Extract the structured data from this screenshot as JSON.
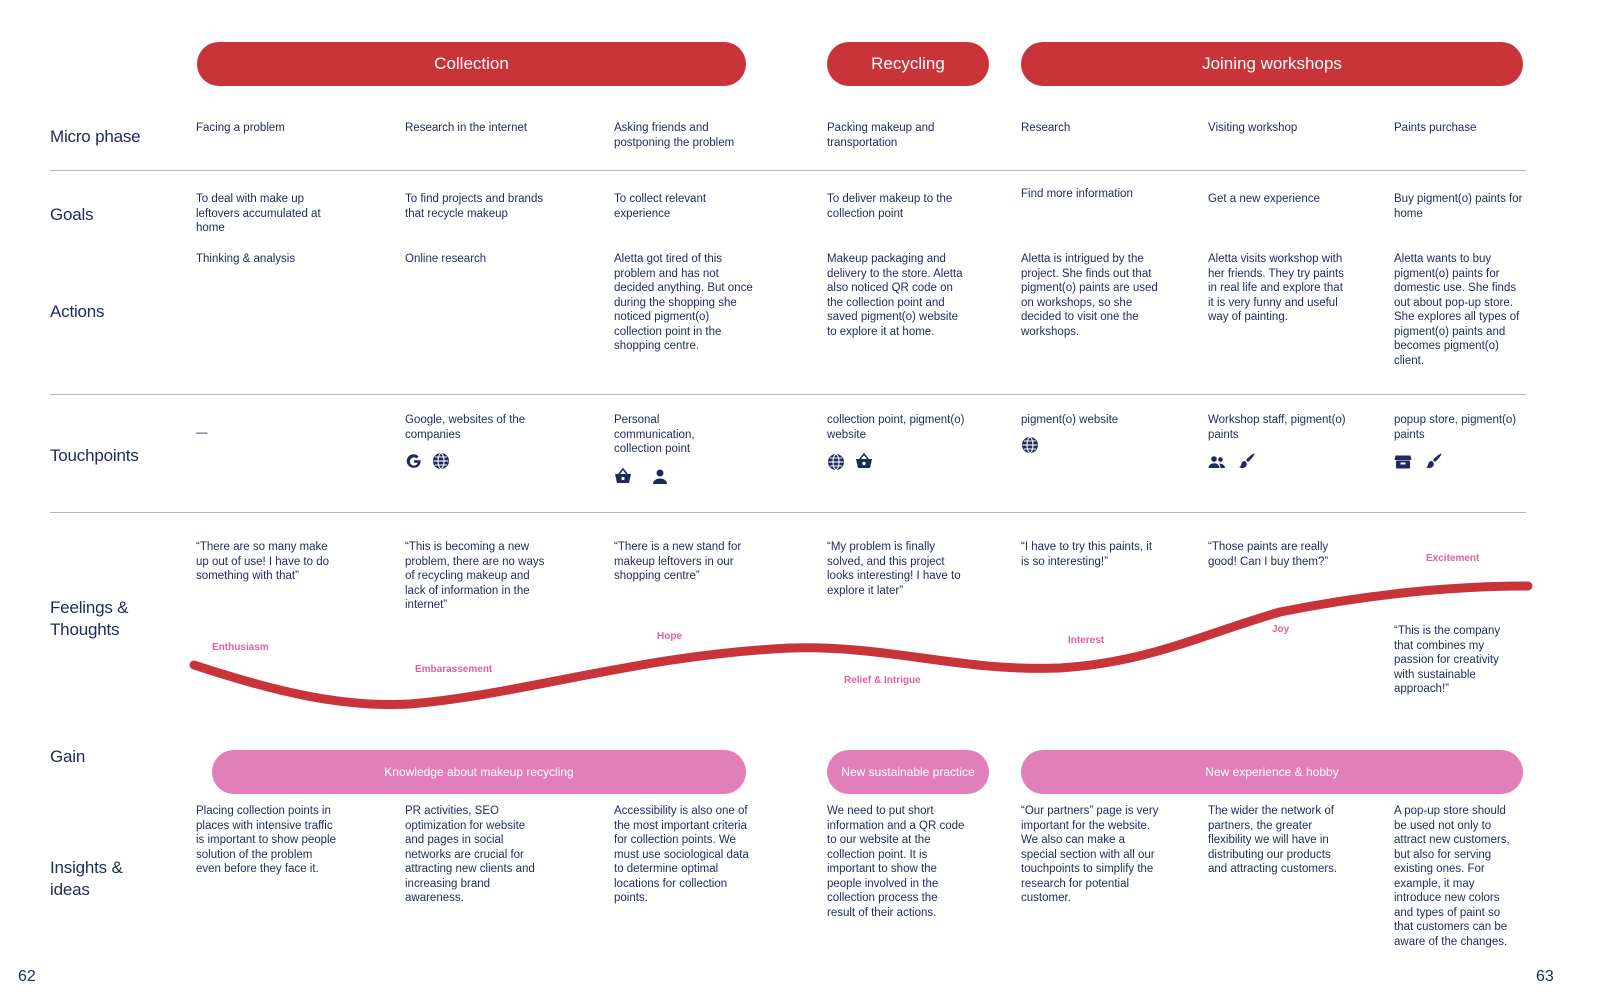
{
  "phases": {
    "collection": "Collection",
    "recycling": "Recycling",
    "workshops": "Joining workshops"
  },
  "rows": {
    "micro_phase": "Micro phase",
    "goals": "Goals",
    "actions": "Actions",
    "touchpoints": "Touchpoints",
    "feelings": "Feelings & Thoughts",
    "gain": "Gain",
    "insights": "Insights & ideas"
  },
  "columns": [
    {
      "micro": "Facing a problem",
      "goal": "To deal with make up leftovers accumulated at home",
      "action": "Thinking & analysis",
      "touch": "—",
      "quote": "“There are so many make up out of use! I have to do something with that”",
      "emotion": "Enthusiasm",
      "insight": "Placing collection points in places with intensive traffic is important to show people solution of the problem even before they face it."
    },
    {
      "micro": "Research in the internet",
      "goal": "To find projects and brands that recycle makeup",
      "action": "Online research",
      "touch": "Google, websites of the companies",
      "quote": "“This is becoming a new problem, there are no ways of recycling makeup and lack of information in the internet”",
      "emotion": "Embarassement",
      "insight": "PR activities, SEO optimization for website and pages in social networks are crucial for attracting new clients and increasing brand awareness."
    },
    {
      "micro": "Asking friends and postponing the problem",
      "goal": "To collect relevant experience",
      "action": "Aletta got tired of this problem and has not decided anything. But once during the shopping she noticed pigment(o) collection point in the shopping centre.",
      "touch": "Personal communication, collection point",
      "quote": "“There is a new stand for makeup leftovers in our shopping centre”",
      "emotion": "Hope",
      "insight": "Accessibility is also one of the most important criteria for collection points. We must use sociological data to determine optimal locations for collection points."
    },
    {
      "micro": "Packing makeup and transportation",
      "goal": "To deliver makeup to the collection point",
      "action": "Makeup packaging and delivery to the store. Aletta also noticed QR code on the collection point and saved pigment(o) website to explore it at home.",
      "touch": "collection point, pigment(o) website",
      "quote": "“My problem is finally solved, and this project looks interesting! I have to explore it later”",
      "emotion": "Relief & Intrigue",
      "insight": "We need to put short information and a QR code to our website at the collection point. It is important to show the people involved in the collection process the result of their actions."
    },
    {
      "micro": "Research",
      "goal": "Find more information",
      "action": "Aletta is intrigued by the project. She finds out that pigment(o) paints are used on workshops, so she decided to visit one the workshops.",
      "touch": "pigment(o) website",
      "quote": "“I have to try this paints, it is so interesting!”",
      "emotion": "Interest",
      "insight": "“Our partners” page is very important for the website. We also can make a special section with all our touchpoints to simplify the research for potential customer."
    },
    {
      "micro": "Visiting workshop",
      "goal": "Get a new experience",
      "action": "Aletta visits workshop with her friends. They try paints in real life and explore that it is very funny and useful way of painting.",
      "touch": "Workshop staff, pigment(o) paints",
      "quote": "“Those paints are really good! Can I buy them?”",
      "emotion": "Joy",
      "insight": "The wider the network of partners, the greater flexibility we will have in distributing our products and attracting customers."
    },
    {
      "micro": "Paints purchase",
      "goal": "Buy pigment(o) paints for home",
      "action": "Aletta wants to buy pigment(o) paints for domestic use. She finds out about pop-up store. She explores all types of pigment(o) paints and becomes pigment(o) client.",
      "touch": "popup store, pigment(o) paints",
      "quote": "“This is the company that combines my passion for creativity with sustainable approach!”",
      "emotion": "Excitement",
      "insight": "A pop-up store should be used not only to attract new customers, but also for serving existing ones. For example, it may introduce new colors and types of paint so that customers can be aware of the changes."
    }
  ],
  "gains": {
    "collection": "Knowledge about makeup recycling",
    "recycling": "New sustainable practice",
    "workshops": "New experience & hobby"
  },
  "icons": [
    "google-icon",
    "globe-icon",
    "basket-icon",
    "person-icon",
    "people-icon",
    "paint-icon",
    "store-icon"
  ],
  "colors": {
    "accent_red": "#c8343a",
    "gain_pink": "#e17fba",
    "emotion_pink": "#e0609f",
    "text_navy": "#1e2a5c"
  },
  "pages": {
    "left": "62",
    "right": "63"
  }
}
